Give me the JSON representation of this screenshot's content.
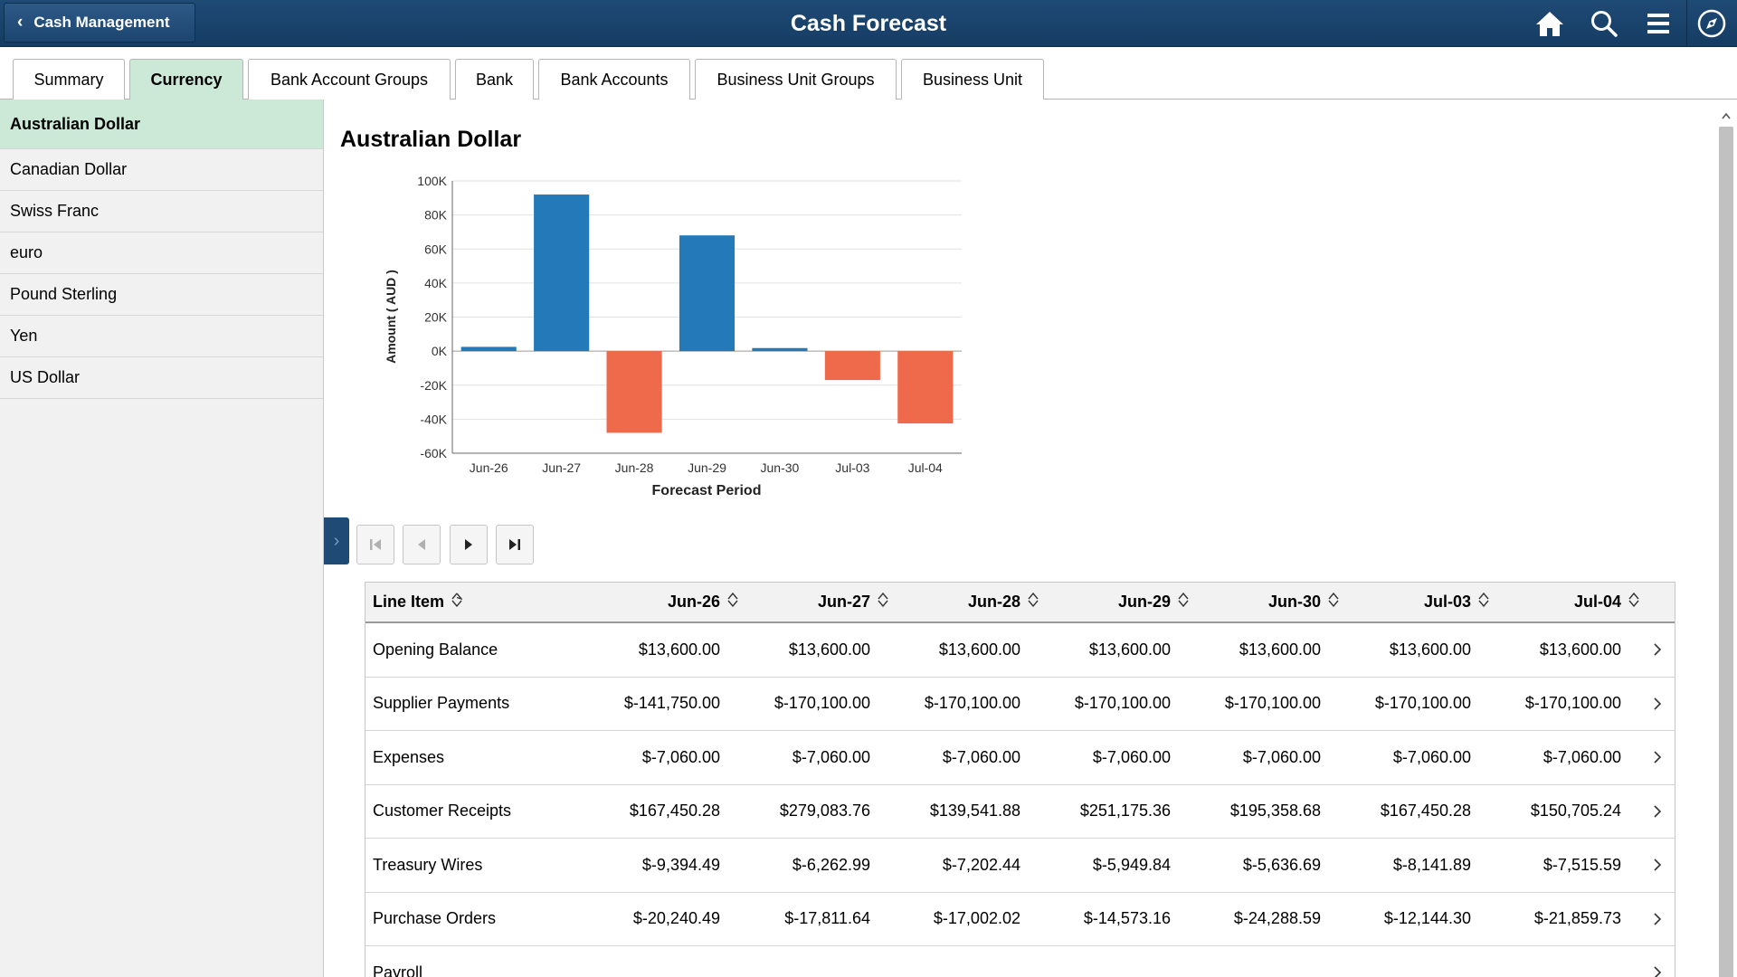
{
  "header": {
    "back_label": "Cash Management",
    "title": "Cash Forecast",
    "icons": [
      "home-icon",
      "search-icon",
      "menu-icon",
      "navbar-compass-icon"
    ]
  },
  "tabs": [
    {
      "label": "Summary",
      "active": false
    },
    {
      "label": "Currency",
      "active": true
    },
    {
      "label": "Bank Account Groups",
      "active": false
    },
    {
      "label": "Bank",
      "active": false
    },
    {
      "label": "Bank Accounts",
      "active": false
    },
    {
      "label": "Business Unit Groups",
      "active": false
    },
    {
      "label": "Business Unit",
      "active": false
    }
  ],
  "sidebar": {
    "items": [
      {
        "label": "Australian Dollar",
        "active": true
      },
      {
        "label": "Canadian Dollar",
        "active": false
      },
      {
        "label": "Swiss Franc",
        "active": false
      },
      {
        "label": "euro",
        "active": false
      },
      {
        "label": "Pound Sterling",
        "active": false
      },
      {
        "label": "Yen",
        "active": false
      },
      {
        "label": "US Dollar",
        "active": false
      }
    ]
  },
  "main": {
    "title": "Australian Dollar"
  },
  "chart_data": {
    "type": "bar",
    "title": "",
    "xlabel": "Forecast Period",
    "ylabel": "Amount ( AUD )",
    "categories": [
      "Jun-26",
      "Jun-27",
      "Jun-28",
      "Jun-29",
      "Jun-30",
      "Jul-03",
      "Jul-04"
    ],
    "values": [
      2500,
      92000,
      -48000,
      68000,
      1800,
      -17000,
      -42500
    ],
    "ylim": [
      -60000,
      100000
    ],
    "yticks": [
      100000,
      80000,
      60000,
      40000,
      20000,
      0,
      -20000,
      -40000,
      -60000
    ],
    "ytick_labels": [
      "100K",
      "80K",
      "60K",
      "40K",
      "20K",
      "0K",
      "-20K",
      "-40K",
      "-60K"
    ],
    "grid": true,
    "colors": {
      "positive": "#2479b8",
      "negative": "#ee6a4b"
    }
  },
  "pager": {
    "buttons": [
      "first-page",
      "previous-page",
      "next-page",
      "last-page"
    ]
  },
  "table": {
    "headers": [
      "Line Item",
      "Jun-26",
      "Jun-27",
      "Jun-28",
      "Jun-29",
      "Jun-30",
      "Jul-03",
      "Jul-04"
    ],
    "rows": [
      {
        "label": "Opening Balance",
        "values": [
          "$13,600.00",
          "$13,600.00",
          "$13,600.00",
          "$13,600.00",
          "$13,600.00",
          "$13,600.00",
          "$13,600.00"
        ]
      },
      {
        "label": "Supplier Payments",
        "values": [
          "$-141,750.00",
          "$-170,100.00",
          "$-170,100.00",
          "$-170,100.00",
          "$-170,100.00",
          "$-170,100.00",
          "$-170,100.00"
        ]
      },
      {
        "label": "Expenses",
        "values": [
          "$-7,060.00",
          "$-7,060.00",
          "$-7,060.00",
          "$-7,060.00",
          "$-7,060.00",
          "$-7,060.00",
          "$-7,060.00"
        ]
      },
      {
        "label": "Customer Receipts",
        "values": [
          "$167,450.28",
          "$279,083.76",
          "$139,541.88",
          "$251,175.36",
          "$195,358.68",
          "$167,450.28",
          "$150,705.24"
        ]
      },
      {
        "label": "Treasury Wires",
        "values": [
          "$-9,394.49",
          "$-6,262.99",
          "$-7,202.44",
          "$-5,949.84",
          "$-5,636.69",
          "$-8,141.89",
          "$-7,515.59"
        ]
      },
      {
        "label": "Purchase Orders",
        "values": [
          "$-20,240.49",
          "$-17,811.64",
          "$-17,002.02",
          "$-14,573.16",
          "$-24,288.59",
          "$-12,144.30",
          "$-21,859.73"
        ]
      },
      {
        "label": "Payroll",
        "values": [
          "",
          "",
          "",
          "",
          "",
          "",
          ""
        ]
      }
    ]
  }
}
